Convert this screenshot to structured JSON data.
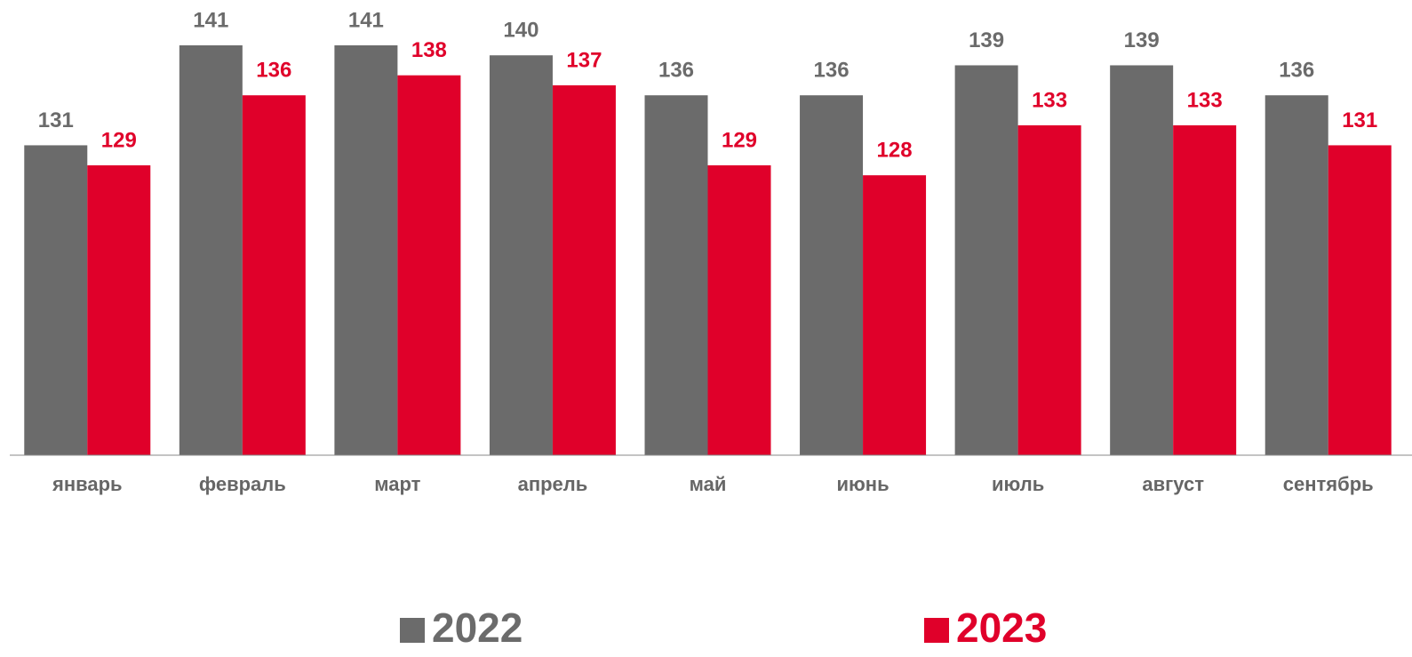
{
  "chart_data": {
    "type": "bar",
    "categories": [
      "январь",
      "февраль",
      "март",
      "апрель",
      "май",
      "июнь",
      "июль",
      "август",
      "сентябрь"
    ],
    "series": [
      {
        "name": "2022",
        "color": "#6b6b6b",
        "values": [
          131,
          141,
          141,
          140,
          136,
          136,
          139,
          139,
          136
        ]
      },
      {
        "name": "2023",
        "color": "#e0002a",
        "values": [
          129,
          136,
          138,
          137,
          129,
          128,
          133,
          133,
          131
        ]
      }
    ],
    "ylim": [
      100,
      145
    ]
  }
}
